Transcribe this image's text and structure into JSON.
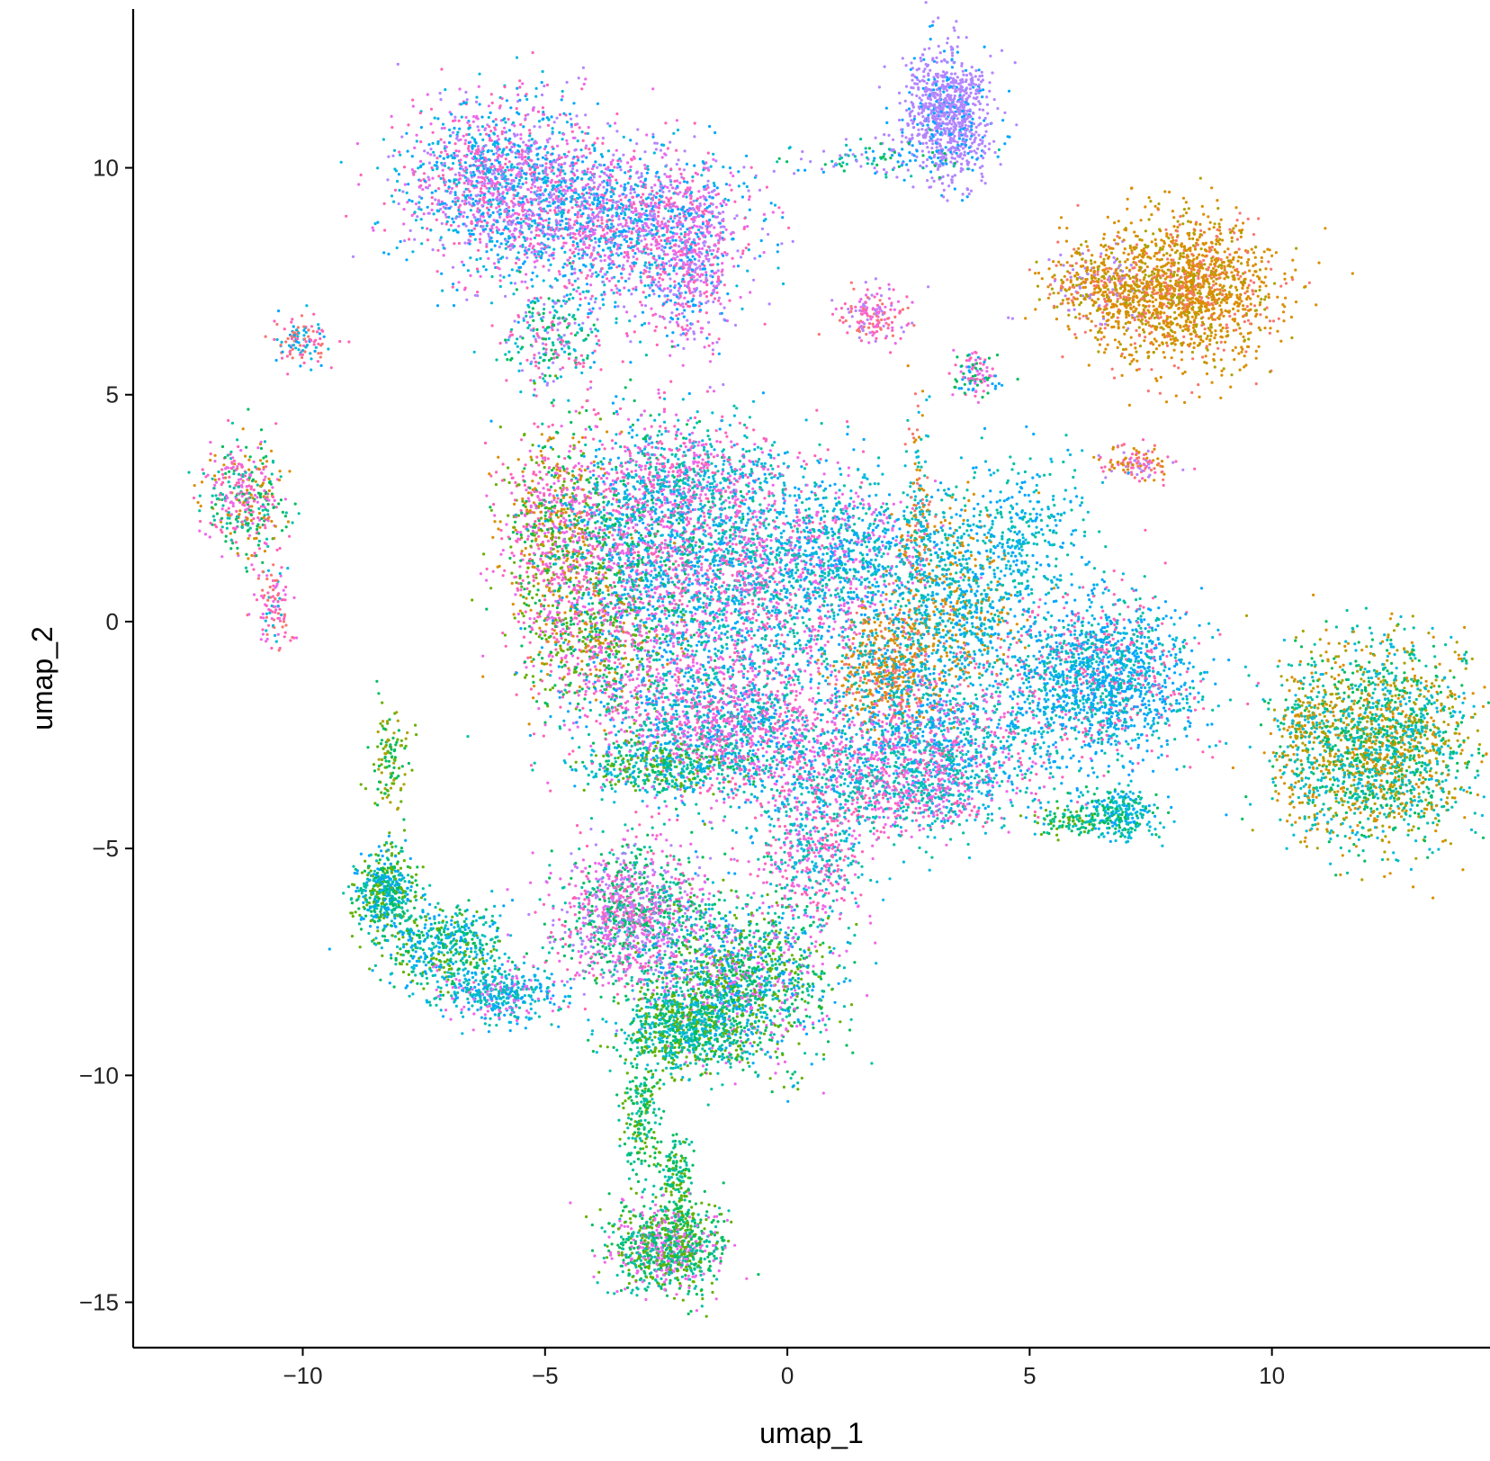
{
  "chart_data": {
    "type": "scatter",
    "title": "",
    "xlabel": "umap_1",
    "ylabel": "umap_2",
    "xlim": [
      -13.5,
      14.5
    ],
    "ylim": [
      -16,
      13.5
    ],
    "x_ticks": [
      -10,
      -5,
      0,
      5,
      10
    ],
    "y_ticks": [
      -15,
      -10,
      -5,
      0,
      5,
      10
    ],
    "x_tick_labels": [
      "−10",
      "−5",
      "0",
      "5",
      "10"
    ],
    "y_tick_labels": [
      "−15",
      "−10",
      "−5",
      "0",
      "5",
      "10"
    ],
    "grid": false,
    "legend": "none",
    "series_colors": [
      "#F8766D",
      "#DB8E00",
      "#AEA200",
      "#64B200",
      "#00BD5C",
      "#00C1A7",
      "#00BADE",
      "#00A6FF",
      "#B385FF",
      "#EF67EB",
      "#FF63B6"
    ],
    "clusters": [
      {
        "x": 3.3,
        "y": 11.2,
        "sx": 0.45,
        "sy": 0.7,
        "n": 900,
        "colors": [
          8,
          8,
          8,
          8,
          7
        ]
      },
      {
        "x": 2.1,
        "y": 10.2,
        "sx": 1.0,
        "sy": 0.2,
        "n": 120,
        "colors": [
          8,
          7,
          5,
          4
        ]
      },
      {
        "x": -6.0,
        "y": 9.7,
        "sx": 1.0,
        "sy": 0.9,
        "n": 1400,
        "colors": [
          7,
          8,
          10,
          9,
          6
        ]
      },
      {
        "x": -3.5,
        "y": 8.8,
        "sx": 1.3,
        "sy": 0.9,
        "n": 1700,
        "colors": [
          10,
          9,
          7,
          8,
          6
        ]
      },
      {
        "x": -2.0,
        "y": 7.8,
        "sx": 0.4,
        "sy": 0.9,
        "n": 500,
        "colors": [
          7,
          8,
          10,
          9
        ]
      },
      {
        "x": -4.8,
        "y": 6.2,
        "sx": 0.5,
        "sy": 0.6,
        "n": 260,
        "colors": [
          5,
          4,
          6,
          8,
          10
        ]
      },
      {
        "x": -10.0,
        "y": 6.2,
        "sx": 0.3,
        "sy": 0.25,
        "n": 120,
        "colors": [
          6,
          7,
          10,
          0
        ]
      },
      {
        "x": -11.2,
        "y": 2.7,
        "sx": 0.4,
        "sy": 0.6,
        "n": 420,
        "colors": [
          10,
          9,
          4,
          1,
          5
        ]
      },
      {
        "x": -10.6,
        "y": 0.4,
        "sx": 0.2,
        "sy": 0.45,
        "n": 110,
        "colors": [
          10,
          0,
          9,
          6
        ]
      },
      {
        "x": 1.8,
        "y": 6.8,
        "sx": 0.35,
        "sy": 0.3,
        "n": 170,
        "colors": [
          0,
          10,
          9,
          8
        ]
      },
      {
        "x": 3.9,
        "y": 5.4,
        "sx": 0.25,
        "sy": 0.25,
        "n": 110,
        "colors": [
          10,
          4,
          7,
          9
        ]
      },
      {
        "x": 6.5,
        "y": 7.4,
        "sx": 0.6,
        "sy": 0.45,
        "n": 400,
        "colors": [
          1,
          1,
          2,
          0,
          8
        ]
      },
      {
        "x": 8.2,
        "y": 7.3,
        "sx": 0.9,
        "sy": 0.8,
        "n": 1500,
        "colors": [
          1,
          1,
          1,
          2,
          0
        ]
      },
      {
        "x": 7.2,
        "y": 3.5,
        "sx": 0.4,
        "sy": 0.2,
        "n": 120,
        "colors": [
          0,
          10,
          8,
          1
        ]
      },
      {
        "x": -4.8,
        "y": 1.9,
        "sx": 0.6,
        "sy": 1.2,
        "n": 900,
        "colors": [
          1,
          4,
          3,
          10,
          9
        ]
      },
      {
        "x": -3.0,
        "y": 1.5,
        "sx": 0.9,
        "sy": 1.4,
        "n": 1600,
        "colors": [
          9,
          10,
          7,
          6,
          4
        ]
      },
      {
        "x": -2.0,
        "y": 3.2,
        "sx": 1.0,
        "sy": 0.6,
        "n": 600,
        "colors": [
          5,
          6,
          9,
          10
        ]
      },
      {
        "x": -0.6,
        "y": 1.0,
        "sx": 1.2,
        "sy": 1.2,
        "n": 1700,
        "colors": [
          7,
          6,
          9,
          10,
          5
        ]
      },
      {
        "x": 1.5,
        "y": 1.5,
        "sx": 0.9,
        "sy": 0.8,
        "n": 700,
        "colors": [
          7,
          6,
          5,
          9
        ]
      },
      {
        "x": -4.0,
        "y": -0.5,
        "sx": 0.8,
        "sy": 0.8,
        "n": 500,
        "colors": [
          4,
          3,
          9,
          10,
          1
        ]
      },
      {
        "x": -1.6,
        "y": -2.0,
        "sx": 1.3,
        "sy": 0.8,
        "n": 1400,
        "colors": [
          9,
          10,
          7,
          5
        ]
      },
      {
        "x": 2.2,
        "y": -1.0,
        "sx": 0.6,
        "sy": 0.7,
        "n": 700,
        "colors": [
          1,
          1,
          0,
          5,
          7
        ]
      },
      {
        "x": 3.6,
        "y": 0.5,
        "sx": 0.7,
        "sy": 1.1,
        "n": 800,
        "colors": [
          7,
          6,
          5,
          1
        ]
      },
      {
        "x": 5.0,
        "y": 2.0,
        "sx": 0.6,
        "sy": 0.8,
        "n": 300,
        "colors": [
          7,
          6,
          5
        ]
      },
      {
        "x": 2.7,
        "y": 2.0,
        "sx": 0.15,
        "sy": 1.2,
        "n": 180,
        "colors": [
          1,
          6,
          5,
          0
        ]
      },
      {
        "x": 6.5,
        "y": -1.3,
        "sx": 1.0,
        "sy": 0.9,
        "n": 1700,
        "colors": [
          7,
          7,
          6,
          5,
          10
        ]
      },
      {
        "x": 3.0,
        "y": -2.8,
        "sx": 1.1,
        "sy": 0.8,
        "n": 1200,
        "colors": [
          5,
          7,
          6,
          10,
          9
        ]
      },
      {
        "x": 2.5,
        "y": -3.8,
        "sx": 0.9,
        "sy": 0.45,
        "n": 500,
        "colors": [
          10,
          9,
          6,
          5
        ]
      },
      {
        "x": -0.5,
        "y": -3.0,
        "sx": 1.5,
        "sy": 0.6,
        "n": 700,
        "colors": [
          9,
          10,
          5,
          7
        ]
      },
      {
        "x": -2.7,
        "y": -3.2,
        "sx": 0.9,
        "sy": 0.3,
        "n": 350,
        "colors": [
          6,
          4,
          3,
          5
        ]
      },
      {
        "x": 6.8,
        "y": -4.2,
        "sx": 0.45,
        "sy": 0.3,
        "n": 280,
        "colors": [
          7,
          6,
          4,
          5
        ]
      },
      {
        "x": 5.8,
        "y": -4.4,
        "sx": 0.4,
        "sy": 0.15,
        "n": 90,
        "colors": [
          4,
          5,
          3
        ]
      },
      {
        "x": 12.2,
        "y": -2.7,
        "sx": 0.95,
        "sy": 1.1,
        "n": 1900,
        "colors": [
          5,
          2,
          1,
          4,
          6
        ]
      },
      {
        "x": 10.6,
        "y": -2.6,
        "sx": 0.3,
        "sy": 0.9,
        "n": 220,
        "colors": [
          2,
          1,
          5,
          6
        ]
      },
      {
        "x": 0.6,
        "y": -5.0,
        "sx": 0.6,
        "sy": 0.9,
        "n": 600,
        "colors": [
          5,
          6,
          9,
          10
        ]
      },
      {
        "x": -3.2,
        "y": -6.5,
        "sx": 0.8,
        "sy": 0.8,
        "n": 1300,
        "colors": [
          9,
          10,
          4,
          5,
          8
        ]
      },
      {
        "x": -1.0,
        "y": -8.0,
        "sx": 0.9,
        "sy": 0.9,
        "n": 1500,
        "colors": [
          4,
          3,
          5,
          9,
          7
        ]
      },
      {
        "x": -2.1,
        "y": -9.0,
        "sx": 0.7,
        "sy": 0.5,
        "n": 700,
        "colors": [
          5,
          4,
          6,
          3
        ]
      },
      {
        "x": -8.3,
        "y": -6.0,
        "sx": 0.3,
        "sy": 0.5,
        "n": 500,
        "colors": [
          4,
          5,
          3,
          7
        ]
      },
      {
        "x": -7.0,
        "y": -7.2,
        "sx": 0.6,
        "sy": 0.5,
        "n": 500,
        "colors": [
          4,
          5,
          6,
          7,
          3
        ]
      },
      {
        "x": -5.9,
        "y": -8.2,
        "sx": 0.6,
        "sy": 0.3,
        "n": 400,
        "colors": [
          7,
          6,
          5,
          9
        ]
      },
      {
        "x": -8.2,
        "y": -3.0,
        "sx": 0.2,
        "sy": 0.5,
        "n": 120,
        "colors": [
          3,
          4,
          2
        ]
      },
      {
        "x": -3.0,
        "y": -10.8,
        "sx": 0.2,
        "sy": 0.7,
        "n": 200,
        "colors": [
          4,
          5,
          3
        ]
      },
      {
        "x": -2.3,
        "y": -12.5,
        "sx": 0.2,
        "sy": 0.6,
        "n": 180,
        "colors": [
          4,
          5,
          3
        ]
      },
      {
        "x": -2.5,
        "y": -13.8,
        "sx": 0.6,
        "sy": 0.5,
        "n": 900,
        "colors": [
          4,
          3,
          5,
          9
        ]
      }
    ]
  }
}
